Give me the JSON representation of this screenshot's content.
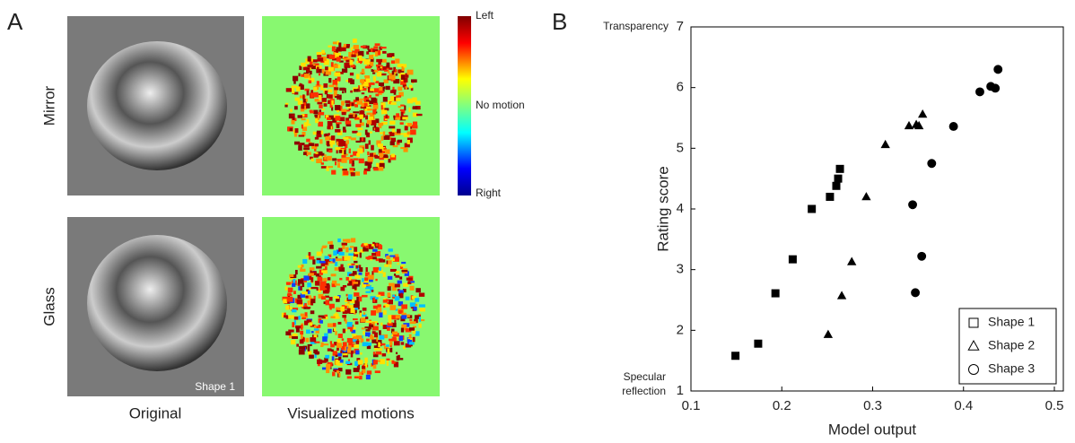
{
  "panel_a": {
    "label": "A",
    "rows": [
      "Mirror",
      "Glass"
    ],
    "columns": [
      "Original",
      "Visualized motions"
    ],
    "image_tag": "Shape 1",
    "colorbar": {
      "top": "Left",
      "middle": "No motion",
      "bottom": "Right"
    }
  },
  "chart_data": {
    "type": "scatter",
    "panel_label": "B",
    "x_label": "Model output",
    "y_label": "Rating score",
    "y_top_annotation": "Transparency",
    "y_bottom_annotation": [
      "Specular",
      "reflection"
    ],
    "xlim": [
      0.1,
      0.5
    ],
    "xticks": [
      0.1,
      0.2,
      0.3,
      0.4,
      0.5
    ],
    "ylim": [
      1,
      7
    ],
    "yticks": [
      1,
      2,
      3,
      4,
      5,
      6,
      7
    ],
    "legend": "lower right",
    "series": [
      {
        "name": "Shape 1",
        "marker": "square",
        "color": "#000000",
        "x": [
          0.149,
          0.174,
          0.193,
          0.212,
          0.233,
          0.253,
          0.26,
          0.262,
          0.264
        ],
        "values": [
          1.58,
          1.78,
          2.61,
          3.17,
          4.0,
          4.2,
          4.38,
          4.5,
          4.66
        ]
      },
      {
        "name": "Shape 2",
        "marker": "triangle",
        "color": "#000000",
        "x": [
          0.251,
          0.266,
          0.277,
          0.293,
          0.314,
          0.34,
          0.348,
          0.351,
          0.355
        ],
        "values": [
          1.93,
          2.57,
          3.13,
          4.2,
          5.06,
          5.37,
          5.39,
          5.37,
          5.56
        ]
      },
      {
        "name": "Shape 3",
        "marker": "circle",
        "color": "#000000",
        "x": [
          0.347,
          0.354,
          0.344,
          0.365,
          0.389,
          0.418,
          0.43,
          0.435,
          0.438
        ],
        "values": [
          2.62,
          3.22,
          4.07,
          4.75,
          5.36,
          5.93,
          6.02,
          5.99,
          6.3
        ]
      }
    ]
  }
}
